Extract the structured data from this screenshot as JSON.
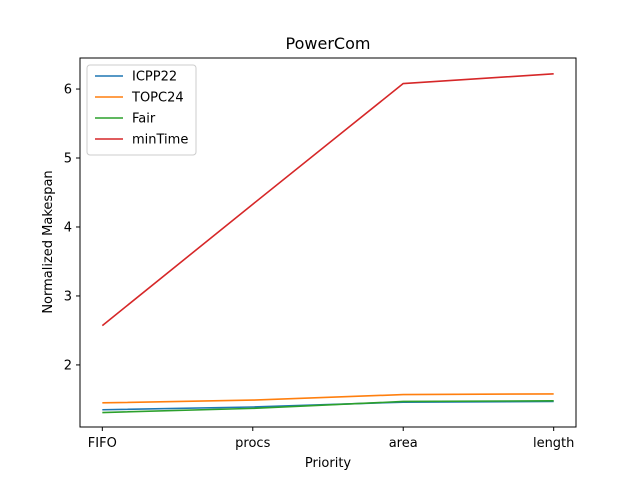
{
  "chart_data": {
    "type": "line",
    "title": "PowerCom",
    "xlabel": "Priority",
    "ylabel": "Normalized Makespan",
    "categories": [
      "FIFO",
      "procs",
      "area",
      "length"
    ],
    "ylim": [
      1.1,
      6.45
    ],
    "yticks": [
      2,
      3,
      4,
      5,
      6
    ],
    "grid": false,
    "legend_position": "top-left",
    "series": [
      {
        "name": "ICPP22",
        "color": "#1f77b4",
        "values": [
          1.35,
          1.39,
          1.46,
          1.47
        ]
      },
      {
        "name": "TOPC24",
        "color": "#ff7f0e",
        "values": [
          1.45,
          1.49,
          1.57,
          1.58
        ]
      },
      {
        "name": "Fair",
        "color": "#2ca02c",
        "values": [
          1.31,
          1.37,
          1.47,
          1.48
        ]
      },
      {
        "name": "minTime",
        "color": "#d62728",
        "values": [
          2.57,
          4.33,
          6.08,
          6.22
        ]
      }
    ]
  }
}
